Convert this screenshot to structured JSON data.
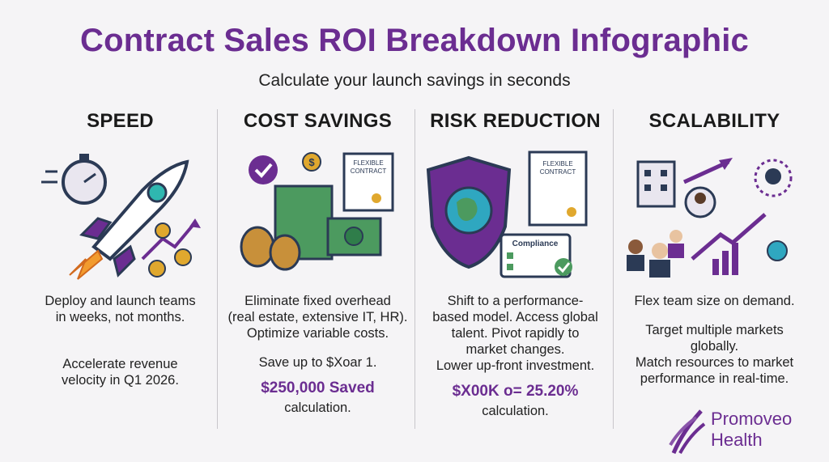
{
  "title": "Contract Sales ROI Breakdown Infographic",
  "subtitle": "Calculate your launch savings in seconds",
  "columns": [
    {
      "heading": "SPEED",
      "icons": [
        "stopwatch-icon",
        "rocket-icon",
        "dollar-coin-icon",
        "growth-arrow-icon"
      ],
      "lines": [
        "Deploy and launch teams",
        "in weeks, not months.",
        "",
        "Accelerate revenue",
        "velocity in Q1 2026."
      ]
    },
    {
      "heading": "COST SAVINGS",
      "icons": [
        "checkmark-icon",
        "dollar-coin-icon",
        "contract-document-icon",
        "money-bag-icon",
        "cash-stack-icon"
      ],
      "contract_label": "FLEXIBLE CONTRACT",
      "lines": [
        "Eliminate fixed overhead",
        "(real estate, extensive IT, HR).",
        "Optimize variable costs.",
        "",
        "Save up to $Xoar 1."
      ],
      "highlight": "$250,000 Saved",
      "after": "calculation."
    },
    {
      "heading": "RISK REDUCTION",
      "icons": [
        "shield-globe-icon",
        "contract-document-icon",
        "compliance-checklist-icon"
      ],
      "contract_label": "FLEXIBLE CONTRACT",
      "compliance_label": "Compliance",
      "lines": [
        "Shift to a performance-",
        "based model. Access global",
        "talent. Pivot rapidly to",
        "market changes.",
        "Lower up-front investment."
      ],
      "highlight": "$X00K o= 25.20%",
      "after": "calculation."
    },
    {
      "heading": "SCALABILITY",
      "icons": [
        "building-icon",
        "people-icon",
        "network-icon",
        "globe-icon",
        "bar-chart-icon"
      ],
      "lines": [
        "Flex team size on demand.",
        "",
        "Target multiple markets",
        "globally.",
        "Match resources to market",
        "performance in real-time."
      ]
    }
  ],
  "logo": {
    "line1": "Promoveo",
    "line2": "Health"
  },
  "colors": {
    "purple": "#6b2d91",
    "green": "#2f7d4a",
    "gold": "#e0a82e",
    "navy": "#2b3a55"
  }
}
